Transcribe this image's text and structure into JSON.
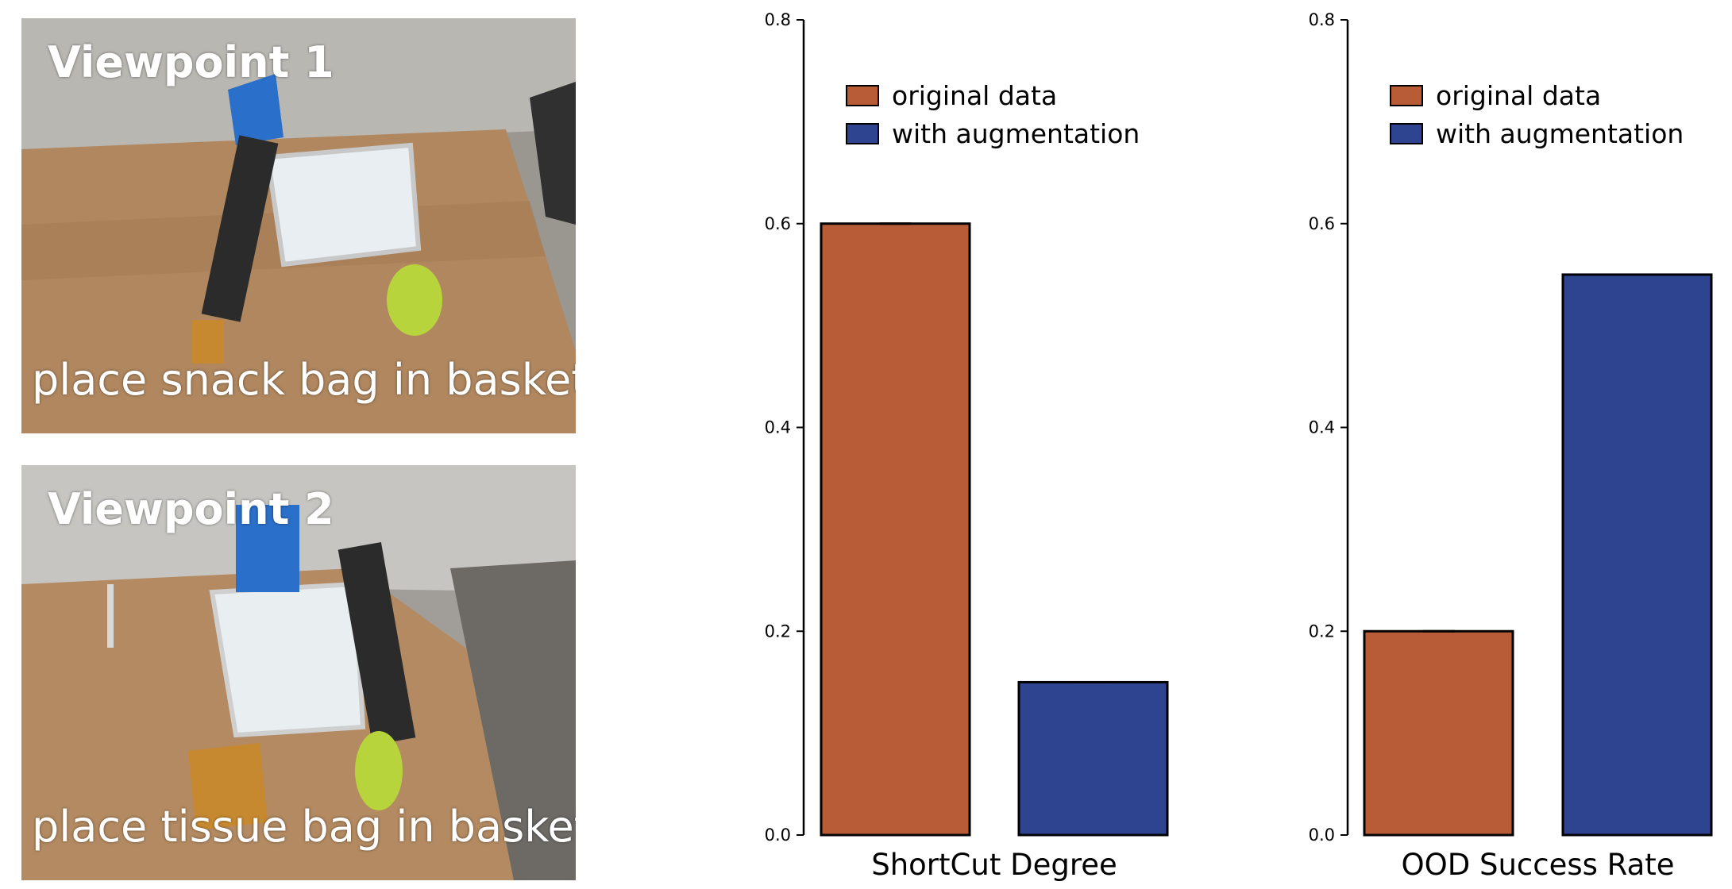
{
  "panels": [
    {
      "title": "Viewpoint 1",
      "caption": "place snack bag in basket"
    },
    {
      "title": "Viewpoint 2",
      "caption": "place tissue bag in basket"
    }
  ],
  "colors": {
    "original": "#b85c37",
    "augmented": "#2f4490"
  },
  "chart_data": [
    {
      "type": "bar",
      "xlabel": "ShortCut Degree",
      "ylabel": "",
      "ylim": [
        0,
        0.8
      ],
      "yticks": [
        "0.0",
        "0.2",
        "0.4",
        "0.6",
        "0.8"
      ],
      "legend_position": "top-left",
      "series": [
        {
          "name": "original data",
          "values": [
            0.6
          ]
        },
        {
          "name": "with augmentation",
          "values": [
            0.15
          ]
        }
      ]
    },
    {
      "type": "bar",
      "xlabel": "OOD Success Rate",
      "ylabel": "",
      "ylim": [
        0,
        0.8
      ],
      "yticks": [
        "0.0",
        "0.2",
        "0.4",
        "0.6",
        "0.8"
      ],
      "legend_position": "top-left",
      "series": [
        {
          "name": "original data",
          "values": [
            0.2
          ]
        },
        {
          "name": "with augmentation",
          "values": [
            0.55
          ]
        }
      ]
    }
  ]
}
